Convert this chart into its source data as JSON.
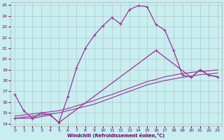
{
  "xlabel": "Windchill (Refroidissement éolien,°C)",
  "background_color": "#c8eef0",
  "grid_color": "#b0c8c8",
  "line_color": "#993399",
  "xlim": [
    -0.5,
    23.5
  ],
  "ylim": [
    13.8,
    25.3
  ],
  "xticks": [
    0,
    1,
    2,
    3,
    4,
    5,
    6,
    7,
    8,
    9,
    10,
    11,
    12,
    13,
    14,
    15,
    16,
    17,
    18,
    19,
    20,
    21,
    22,
    23
  ],
  "yticks": [
    14,
    15,
    16,
    17,
    18,
    19,
    20,
    21,
    22,
    23,
    24,
    25
  ],
  "curve1_x": [
    0,
    1,
    2,
    3,
    4,
    5,
    6,
    7,
    8,
    9,
    10,
    11,
    12,
    13,
    14,
    15,
    16,
    17,
    18,
    19,
    20,
    21,
    22,
    23
  ],
  "curve1_y": [
    16.7,
    15.2,
    14.5,
    15.0,
    14.8,
    14.1,
    16.5,
    19.2,
    21.0,
    22.2,
    23.1,
    23.85,
    23.25,
    24.6,
    24.95,
    24.85,
    23.2,
    22.7,
    20.8,
    18.5,
    18.3,
    19.0,
    18.5,
    18.35
  ],
  "curve2_x": [
    0,
    1,
    2,
    3,
    4,
    5,
    6,
    7,
    8,
    9,
    10,
    11,
    12,
    13,
    14,
    15,
    16,
    17,
    18,
    19,
    20,
    21,
    22,
    23
  ],
  "curve2_y": [
    14.5,
    14.6,
    14.7,
    14.8,
    14.9,
    15.0,
    15.2,
    15.4,
    15.6,
    15.8,
    16.1,
    16.4,
    16.7,
    17.0,
    17.3,
    17.6,
    17.8,
    18.0,
    18.15,
    18.3,
    18.4,
    18.55,
    18.6,
    18.7
  ],
  "curve3_x": [
    0,
    1,
    2,
    3,
    4,
    5,
    6,
    7,
    8,
    9,
    10,
    11,
    12,
    13,
    14,
    15,
    16,
    17,
    18,
    19,
    20,
    21,
    22,
    23
  ],
  "curve3_y": [
    14.7,
    14.8,
    14.9,
    15.0,
    15.1,
    15.2,
    15.4,
    15.65,
    15.9,
    16.15,
    16.45,
    16.7,
    17.0,
    17.3,
    17.6,
    17.9,
    18.1,
    18.35,
    18.5,
    18.65,
    18.75,
    18.85,
    18.9,
    19.0
  ],
  "curve4_x": [
    0,
    2,
    4,
    5,
    16,
    20,
    21,
    22,
    23
  ],
  "curve4_y": [
    14.5,
    14.5,
    14.8,
    14.1,
    20.8,
    18.3,
    19.0,
    18.5,
    18.35
  ]
}
